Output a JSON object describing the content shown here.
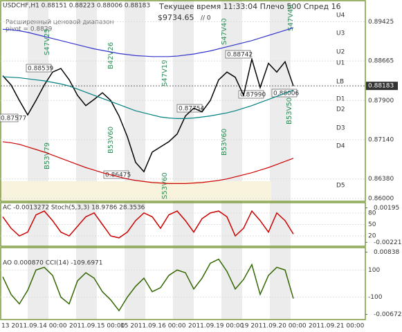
{
  "chart_data": [
    {
      "type": "line",
      "title": "USDCHF,H1  0.88151 0.88223 0.88006 0.88183",
      "subtitle": "Текущее время 11:33:04 Плечо 500 Спред 16",
      "annotations": [
        "$9734.65",
        "// 0",
        "Расширенный ценовой диапазон",
        "pivot = 0.8829"
      ],
      "level_labels": [
        "U4",
        "U3",
        "U2",
        "U1",
        "LB",
        "D1",
        "D2",
        "D3",
        "D4",
        "D5"
      ],
      "price_labels": [
        "0.88539",
        "0.87577",
        "0.88742",
        "0.87754",
        "0.87990",
        "0.88006",
        "0.86475"
      ],
      "signal_labels": [
        "S47V25",
        "B42V26",
        "S47V19",
        "S47V40",
        "S47V40",
        "B53V79",
        "B53V60",
        "S53V60",
        "B53V60",
        "B53V50"
      ],
      "categories": [
        null,
        null,
        null,
        null,
        null,
        null,
        null,
        null,
        null,
        null,
        null,
        null,
        null,
        null,
        null,
        null,
        null,
        null,
        null,
        null,
        null,
        null,
        null,
        null,
        null,
        null,
        null,
        null,
        null,
        null,
        null,
        null,
        null,
        null,
        null,
        null
      ],
      "series": [
        {
          "name": "USDCHF",
          "color": "#000000",
          "values": [
            0.8838,
            0.882,
            0.879,
            0.8762,
            0.879,
            0.882,
            0.8845,
            0.8852,
            0.883,
            0.88,
            0.878,
            0.8792,
            0.8805,
            0.879,
            0.876,
            0.872,
            0.867,
            0.8652,
            0.869,
            0.87,
            0.871,
            0.8725,
            0.876,
            0.8775,
            0.8768,
            0.879,
            0.883,
            0.8845,
            0.8835,
            0.88,
            0.887,
            0.8815,
            0.8862,
            0.8845,
            0.8865,
            0.8818
          ]
        },
        {
          "name": "LB",
          "color": "#008080",
          "values": [
            0.8836,
            0.8835,
            0.8834,
            0.8832,
            0.883,
            0.8828,
            0.8825,
            0.8822,
            0.8818,
            0.8812,
            0.8806,
            0.88,
            0.8794,
            0.8788,
            0.8782,
            0.8776,
            0.877,
            0.8766,
            0.8762,
            0.8758,
            0.8756,
            0.8755,
            0.8755,
            0.8756,
            0.8758,
            0.876,
            0.8763,
            0.8766,
            0.877,
            0.8775,
            0.878,
            0.8786,
            0.8792,
            0.8798,
            0.8804,
            0.881
          ]
        },
        {
          "name": "U4",
          "color": "#3333cc",
          "values": [
            0.8928,
            0.8927,
            0.8925,
            0.8922,
            0.8918,
            0.8914,
            0.891,
            0.8906,
            0.8902,
            0.8898,
            0.8894,
            0.889,
            0.8887,
            0.8884,
            0.8881,
            0.8879,
            0.8877,
            0.8876,
            0.8875,
            0.8875,
            0.8875,
            0.8876,
            0.8878,
            0.888,
            0.8883,
            0.8886,
            0.889,
            0.8894,
            0.8898,
            0.8902,
            0.8906,
            0.8911,
            0.8916,
            0.8921,
            0.8926,
            0.8931
          ]
        },
        {
          "name": "D4",
          "color": "#cc0000",
          "values": [
            0.871,
            0.8708,
            0.8705,
            0.87,
            0.8695,
            0.869,
            0.8684,
            0.8678,
            0.8672,
            0.8666,
            0.866,
            0.8655,
            0.865,
            0.8646,
            0.8642,
            0.8638,
            0.8635,
            0.8633,
            0.8631,
            0.863,
            0.8629,
            0.8629,
            0.8629,
            0.863,
            0.8631,
            0.8633,
            0.8635,
            0.8638,
            0.8642,
            0.8646,
            0.865,
            0.8655,
            0.866,
            0.8666,
            0.8672,
            0.8678
          ]
        }
      ],
      "ylim": [
        0.8596,
        0.8982
      ],
      "yticks": [
        0.89425,
        0.88665,
        0.88183,
        {
          "value": 0.879,
          "label": "0.87900"
        },
        {
          "value": 0.8714,
          "label": "0.87140"
        },
        {
          "value": 0.8638,
          "label": "0.86380"
        },
        {
          "value": 0.86,
          "label": "0.86000"
        }
      ]
    },
    {
      "type": "line",
      "title": "AC -0.0013272  Stoch(5,3,3) 18.9786 28.3536",
      "categories": [
        null,
        null,
        null,
        null,
        null,
        null,
        null,
        null,
        null,
        null,
        null,
        null,
        null,
        null,
        null,
        null,
        null,
        null,
        null,
        null,
        null,
        null,
        null,
        null,
        null,
        null,
        null,
        null,
        null,
        null,
        null,
        null,
        null,
        null,
        null,
        null
      ],
      "series": [
        {
          "name": "Stoch",
          "color": "#cc0000",
          "values": [
            70,
            40,
            20,
            30,
            75,
            85,
            60,
            30,
            20,
            45,
            70,
            80,
            50,
            20,
            15,
            30,
            60,
            80,
            70,
            40,
            75,
            85,
            60,
            30,
            65,
            80,
            85,
            70,
            20,
            40,
            85,
            60,
            30,
            80,
            60,
            25
          ]
        }
      ],
      "ylim": [
        -5,
        105
      ],
      "yticks": [
        80,
        50,
        20
      ],
      "y2lim": [
        -0.0026,
        0.0025
      ],
      "y2ticks": [
        0.00195,
        -0.00221
      ]
    },
    {
      "type": "line",
      "title": "AO 0.000870  CCI(14) -109.6971",
      "categories": [
        null,
        null,
        null,
        null,
        null,
        null,
        null,
        null,
        null,
        null,
        null,
        null,
        null,
        null,
        null,
        null,
        null,
        null,
        null,
        null,
        null,
        null,
        null,
        null,
        null,
        null,
        null,
        null,
        null,
        null,
        null,
        null,
        null,
        null,
        null,
        null
      ],
      "series": [
        {
          "name": "CCI",
          "color": "#336600",
          "values": [
            50,
            -80,
            -150,
            -50,
            100,
            120,
            60,
            -100,
            -150,
            20,
            80,
            40,
            -60,
            -120,
            -200,
            -100,
            -20,
            40,
            -60,
            -30,
            60,
            100,
            80,
            -40,
            40,
            150,
            180,
            90,
            -40,
            30,
            140,
            -80,
            60,
            120,
            100,
            -110
          ]
        }
      ],
      "ylim": [
        -260,
        260
      ],
      "yticks": [
        100,
        -100
      ],
      "y2lim": [
        -0.0078,
        0.0093
      ],
      "y2ticks": [
        0.00838,
        -0.00672
      ],
      "time_labels": [
        "13 2011.09.14 00:00",
        "2011.09.15 00:00",
        "15 2011.09.16 00:00",
        "2011.09.19 00:00",
        "19 2011.09.20 00:00",
        "2011.09.21 00:00"
      ]
    }
  ]
}
